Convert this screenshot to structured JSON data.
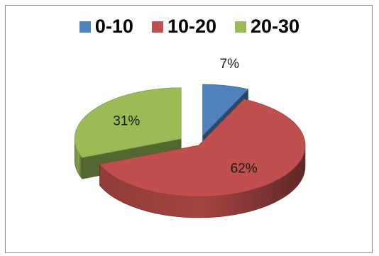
{
  "chart_data": {
    "type": "pie",
    "title": "",
    "categories": [
      "0-10",
      "10-20",
      "20-30"
    ],
    "values": [
      7,
      62,
      31
    ],
    "value_labels": [
      "7%",
      "62%",
      "31%"
    ],
    "colors": [
      "#4f81bd",
      "#c0504d",
      "#9bbb59"
    ],
    "legend_position": "top",
    "style": "3d exploded"
  }
}
